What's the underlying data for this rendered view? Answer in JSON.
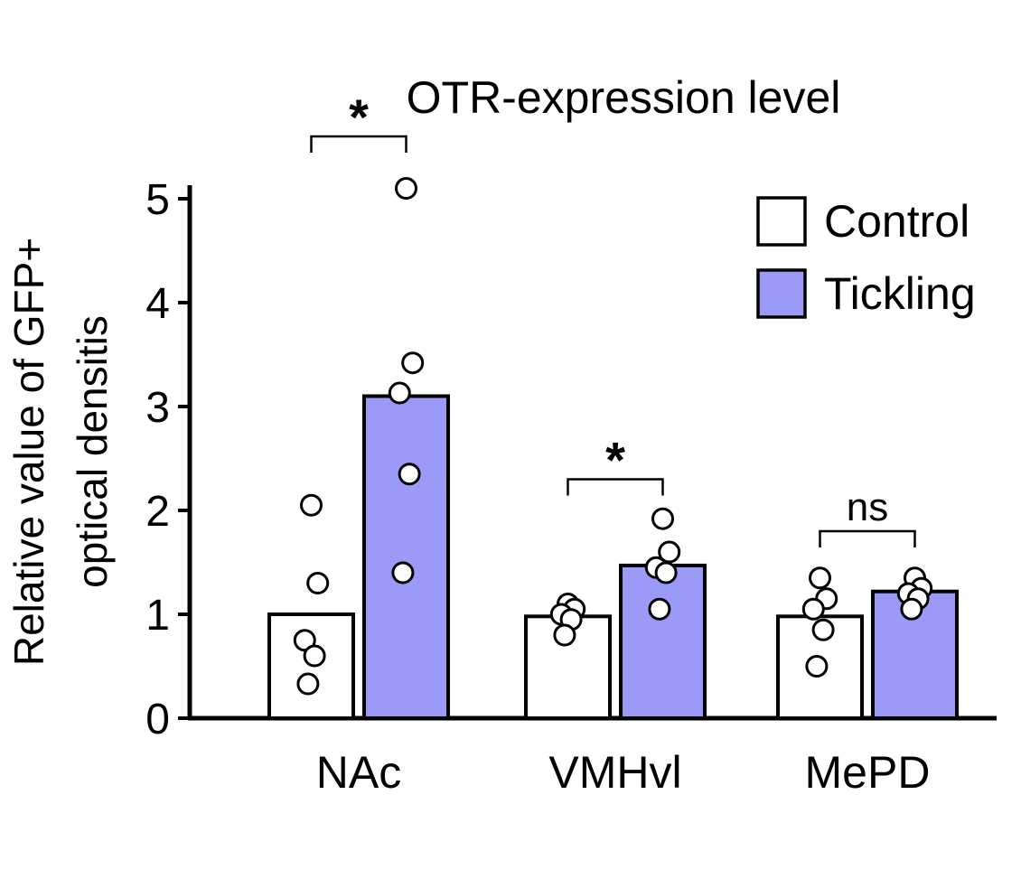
{
  "chart_data": {
    "type": "bar",
    "title": "OTR-expression level",
    "ylabel_line1": "Relative value of GFP+",
    "ylabel_line2": "optical densitis",
    "xlabel": "",
    "ylim": [
      0,
      5
    ],
    "yticks": [
      "0",
      "1",
      "2",
      "3",
      "4",
      "5"
    ],
    "categories": [
      "NAc",
      "VMHvl",
      "MePD"
    ],
    "grid": false,
    "legend_position": "top-right",
    "series": [
      {
        "name": "Control",
        "color": "#ffffff",
        "values": [
          1.0,
          0.98,
          0.98
        ],
        "points": [
          [
            2.05,
            1.3,
            0.75,
            0.6,
            0.33
          ],
          [
            1.1,
            1.05,
            1.0,
            0.95,
            0.8
          ],
          [
            1.35,
            1.15,
            1.05,
            0.85,
            0.5
          ]
        ]
      },
      {
        "name": "Tickling",
        "color": "#9b9bf7",
        "values": [
          3.1,
          1.47,
          1.22
        ],
        "points": [
          [
            5.1,
            3.42,
            3.13,
            2.35,
            1.4
          ],
          [
            1.92,
            1.6,
            1.45,
            1.4,
            1.05
          ],
          [
            1.35,
            1.25,
            1.2,
            1.15,
            1.05
          ]
        ]
      }
    ],
    "annotations": [
      {
        "category": "NAc",
        "label": "*",
        "y": 5.6
      },
      {
        "category": "VMHvl",
        "label": "*",
        "y": 2.3
      },
      {
        "category": "MePD",
        "label": "ns",
        "y": 1.8
      }
    ]
  }
}
